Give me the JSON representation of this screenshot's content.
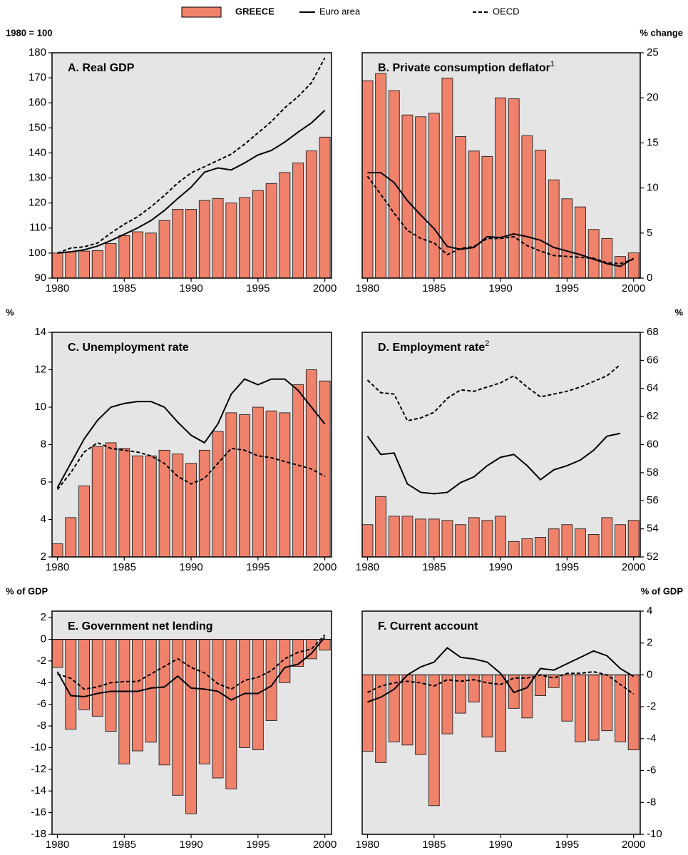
{
  "chart_data": [
    {
      "type": "combo",
      "title": "A.  Real GDP",
      "y_label": "1980 = 100",
      "y_axis_side": "left",
      "x": [
        1980,
        1981,
        1982,
        1983,
        1984,
        1985,
        1986,
        1987,
        1988,
        1989,
        1990,
        1991,
        1992,
        1993,
        1994,
        1995,
        1996,
        1997,
        1998,
        1999,
        2000
      ],
      "xlim": [
        1979.6,
        2000.5
      ],
      "xticks": [
        1980,
        1985,
        1990,
        1995,
        2000
      ],
      "ylim": [
        90,
        180
      ],
      "yticks": [
        90,
        100,
        110,
        120,
        130,
        140,
        150,
        160,
        170,
        180
      ],
      "series": [
        {
          "name": "GREECE",
          "type": "bar",
          "color": "#f0826c",
          "values": [
            100,
            100.5,
            100.8,
            101,
            103.8,
            107,
            108.5,
            108,
            113,
            117.5,
            117.5,
            121,
            121.8,
            120,
            122.2,
            125,
            127.8,
            132.2,
            136,
            140.8,
            146.3
          ]
        },
        {
          "name": "Euro area",
          "type": "line",
          "style": "solid",
          "color": "#000000",
          "values": [
            100,
            100.5,
            101.3,
            102.8,
            105,
            107.5,
            110,
            113,
            117,
            121.8,
            126.3,
            132.3,
            134,
            133.2,
            136,
            139.2,
            141,
            144.3,
            148.3,
            152,
            157
          ]
        },
        {
          "name": "OECD",
          "type": "line",
          "style": "dashed",
          "color": "#000000",
          "values": [
            100,
            102,
            102.5,
            104,
            108,
            111.5,
            114.5,
            118.5,
            123,
            128,
            132,
            134.5,
            137,
            139.5,
            143.5,
            148,
            152.5,
            158,
            162.5,
            168,
            178
          ]
        }
      ]
    },
    {
      "type": "combo",
      "title": "B.  Private consumption deflator",
      "title_note": "1",
      "y_label": "% change",
      "y_axis_side": "right",
      "x": [
        1980,
        1981,
        1982,
        1983,
        1984,
        1985,
        1986,
        1987,
        1988,
        1989,
        1990,
        1991,
        1992,
        1993,
        1994,
        1995,
        1996,
        1997,
        1998,
        1999,
        2000
      ],
      "xlim": [
        1979.6,
        2000.5
      ],
      "xticks": [
        1980,
        1985,
        1990,
        1995,
        2000
      ],
      "ylim": [
        0,
        25
      ],
      "yticks": [
        0,
        5,
        10,
        15,
        20,
        25
      ],
      "series": [
        {
          "name": "GREECE",
          "type": "bar",
          "color": "#f0826c",
          "values": [
            21.9,
            22.7,
            20.8,
            18.1,
            17.9,
            18.3,
            22.2,
            15.7,
            14.1,
            13.5,
            20,
            19.9,
            15.8,
            14.2,
            10.9,
            8.8,
            7.9,
            5.4,
            4.4,
            2.4,
            2.8
          ]
        },
        {
          "name": "Euro area",
          "type": "line",
          "style": "solid",
          "color": "#000000",
          "values": [
            11.7,
            11.7,
            10.6,
            8.6,
            7,
            5.5,
            3.5,
            3.2,
            3.4,
            4.6,
            4.5,
            4.9,
            4.6,
            4.2,
            3.4,
            3,
            2.6,
            2.1,
            1.6,
            1.3,
            2.2
          ]
        },
        {
          "name": "OECD",
          "type": "line",
          "style": "dashed",
          "color": "#000000",
          "values": [
            11.3,
            9.3,
            7.2,
            5.3,
            4.4,
            3.9,
            2.6,
            3.3,
            3.5,
            4.4,
            4.4,
            4.6,
            3.6,
            3,
            2.5,
            2.4,
            2.3,
            2.2,
            1.7,
            1.6,
            2.1
          ]
        }
      ]
    },
    {
      "type": "combo",
      "title": "C.  Unemployment rate",
      "y_label": "%",
      "y_axis_side": "left",
      "x": [
        1980,
        1981,
        1982,
        1983,
        1984,
        1985,
        1986,
        1987,
        1988,
        1989,
        1990,
        1991,
        1992,
        1993,
        1994,
        1995,
        1996,
        1997,
        1998,
        1999,
        2000
      ],
      "xlim": [
        1979.6,
        2000.5
      ],
      "xticks": [
        1980,
        1985,
        1990,
        1995,
        2000
      ],
      "ylim": [
        2,
        14
      ],
      "yticks": [
        2,
        4,
        6,
        8,
        10,
        12,
        14
      ],
      "series": [
        {
          "name": "GREECE",
          "type": "bar",
          "color": "#f0826c",
          "values": [
            2.7,
            4.1,
            5.8,
            7.9,
            8.1,
            7.8,
            7.4,
            7.4,
            7.7,
            7.5,
            7,
            7.7,
            8.7,
            9.7,
            9.6,
            10,
            9.8,
            9.7,
            11.2,
            12,
            11.4
          ]
        },
        {
          "name": "Euro area",
          "type": "line",
          "style": "solid",
          "color": "#000000",
          "values": [
            5.7,
            7,
            8.3,
            9.3,
            10,
            10.2,
            10.3,
            10.3,
            10,
            9.2,
            8.5,
            8.1,
            9.1,
            10.7,
            11.5,
            11.2,
            11.5,
            11.5,
            10.9,
            10,
            9.1
          ]
        },
        {
          "name": "OECD",
          "type": "line",
          "style": "dashed",
          "color": "#000000",
          "values": [
            5.6,
            6.5,
            7.6,
            8.1,
            7.8,
            7.7,
            7.6,
            7.4,
            7,
            6.3,
            5.9,
            6.2,
            7,
            7.8,
            7.7,
            7.4,
            7.3,
            7.1,
            6.9,
            6.7,
            6.3
          ]
        }
      ]
    },
    {
      "type": "combo",
      "title": "D.  Employment rate",
      "title_note": "2",
      "y_label": "%",
      "y_axis_side": "right",
      "x": [
        1980,
        1981,
        1982,
        1983,
        1984,
        1985,
        1986,
        1987,
        1988,
        1989,
        1990,
        1991,
        1992,
        1993,
        1994,
        1995,
        1996,
        1997,
        1998,
        1999,
        2000
      ],
      "xlim": [
        1979.6,
        2000.5
      ],
      "xticks": [
        1980,
        1985,
        1990,
        1995,
        2000
      ],
      "ylim": [
        52,
        68
      ],
      "yticks": [
        52,
        54,
        56,
        58,
        60,
        62,
        64,
        66,
        68
      ],
      "series": [
        {
          "name": "GREECE",
          "type": "bar",
          "color": "#f0826c",
          "values": [
            54.3,
            56.3,
            54.9,
            54.9,
            54.7,
            54.7,
            54.6,
            54.3,
            54.8,
            54.6,
            54.9,
            53.1,
            53.3,
            53.4,
            54,
            54.3,
            54,
            53.6,
            54.8,
            54.3,
            54.6
          ]
        },
        {
          "name": "Euro area",
          "type": "line",
          "style": "solid",
          "color": "#000000",
          "values": [
            60.6,
            59.3,
            59.4,
            57.2,
            56.6,
            56.5,
            56.6,
            57.3,
            57.7,
            58.5,
            59.1,
            59.3,
            58.5,
            57.5,
            58.2,
            58.5,
            58.9,
            59.6,
            60.6,
            60.8,
            null
          ]
        },
        {
          "name": "OECD",
          "type": "line",
          "style": "dashed",
          "color": "#000000",
          "values": [
            64.6,
            63.7,
            63.6,
            61.7,
            61.9,
            62.3,
            63.3,
            63.9,
            63.8,
            64.1,
            64.4,
            64.9,
            64.1,
            63.4,
            63.6,
            63.8,
            64.1,
            64.5,
            64.9,
            65.7,
            null
          ]
        }
      ]
    },
    {
      "type": "combo",
      "title": "E.  Government net lending",
      "y_label": "% of GDP",
      "y_axis_side": "left",
      "x": [
        1980,
        1981,
        1982,
        1983,
        1984,
        1985,
        1986,
        1987,
        1988,
        1989,
        1990,
        1991,
        1992,
        1993,
        1994,
        1995,
        1996,
        1997,
        1998,
        1999,
        2000
      ],
      "xlim": [
        1979.6,
        2000.5
      ],
      "xticks": [
        1980,
        1985,
        1990,
        1995,
        2000
      ],
      "ylim": [
        -18,
        2.6
      ],
      "yticks": [
        -18,
        -16,
        -14,
        -12,
        -10,
        -8,
        -6,
        -4,
        -2,
        0,
        2
      ],
      "series": [
        {
          "name": "GREECE",
          "type": "bar",
          "color": "#f0826c",
          "values": [
            -2.6,
            -8.3,
            -6.5,
            -7.1,
            -8.5,
            -11.5,
            -10.3,
            -9.5,
            -11.6,
            -14.4,
            -16.1,
            -11.5,
            -12.8,
            -13.8,
            -10,
            -10.2,
            -7.5,
            -4,
            -2.5,
            -1.8,
            -1
          ]
        },
        {
          "name": "Euro area",
          "type": "line",
          "style": "solid",
          "color": "#000000",
          "values": [
            -3,
            -5.2,
            -5.3,
            -5,
            -4.8,
            -4.8,
            -4.8,
            -4.5,
            -4.4,
            -3.4,
            -4.5,
            -4.6,
            -4.8,
            -5.6,
            -5,
            -5,
            -4.3,
            -2.6,
            -2.3,
            -1.3,
            0.2
          ]
        },
        {
          "name": "OECD",
          "type": "line",
          "style": "dashed",
          "color": "#000000",
          "values": [
            -3.2,
            -3.6,
            -4.6,
            -4.4,
            -4,
            -3.9,
            -3.9,
            -3.2,
            -2.5,
            -1.8,
            -2.6,
            -3.1,
            -4.1,
            -4.6,
            -3.8,
            -3.5,
            -2.9,
            -1.8,
            -1.2,
            -0.9,
            0.4
          ]
        }
      ]
    },
    {
      "type": "combo",
      "title": "F.  Current account",
      "y_label": "% of GDP",
      "y_axis_side": "right",
      "x": [
        1980,
        1981,
        1982,
        1983,
        1984,
        1985,
        1986,
        1987,
        1988,
        1989,
        1990,
        1991,
        1992,
        1993,
        1994,
        1995,
        1996,
        1997,
        1998,
        1999,
        2000
      ],
      "xlim": [
        1979.6,
        2000.5
      ],
      "xticks": [
        1980,
        1985,
        1990,
        1995,
        2000
      ],
      "ylim": [
        -10,
        4
      ],
      "yticks": [
        -10,
        -8,
        -6,
        -4,
        -2,
        0,
        2,
        4
      ],
      "series": [
        {
          "name": "GREECE",
          "type": "bar",
          "color": "#f0826c",
          "values": [
            -4.8,
            -5.5,
            -4.2,
            -4.4,
            -5,
            -8.2,
            -3.7,
            -2.4,
            -1.7,
            -3.9,
            -4.8,
            -2.1,
            -2.7,
            -1.3,
            -0.8,
            -2.9,
            -4.2,
            -4.1,
            -3.5,
            -4.2,
            -4.7
          ]
        },
        {
          "name": "Euro area",
          "type": "line",
          "style": "solid",
          "color": "#000000",
          "values": [
            -1.7,
            -1.4,
            -0.9,
            0,
            0.5,
            0.8,
            1.7,
            1.1,
            1,
            0.8,
            0.1,
            -1.1,
            -0.8,
            0.4,
            0.3,
            0.7,
            1.1,
            1.5,
            1.2,
            0.4,
            -0.1
          ]
        },
        {
          "name": "OECD",
          "type": "line",
          "style": "dashed",
          "color": "#000000",
          "values": [
            -1.1,
            -0.7,
            -0.5,
            -0.4,
            -0.5,
            -0.7,
            -0.3,
            -0.4,
            -0.3,
            -0.5,
            -0.6,
            -0.2,
            -0.2,
            0,
            -0.2,
            0.1,
            0.1,
            0.2,
            0,
            -0.6,
            -1.2
          ]
        }
      ]
    }
  ]
}
